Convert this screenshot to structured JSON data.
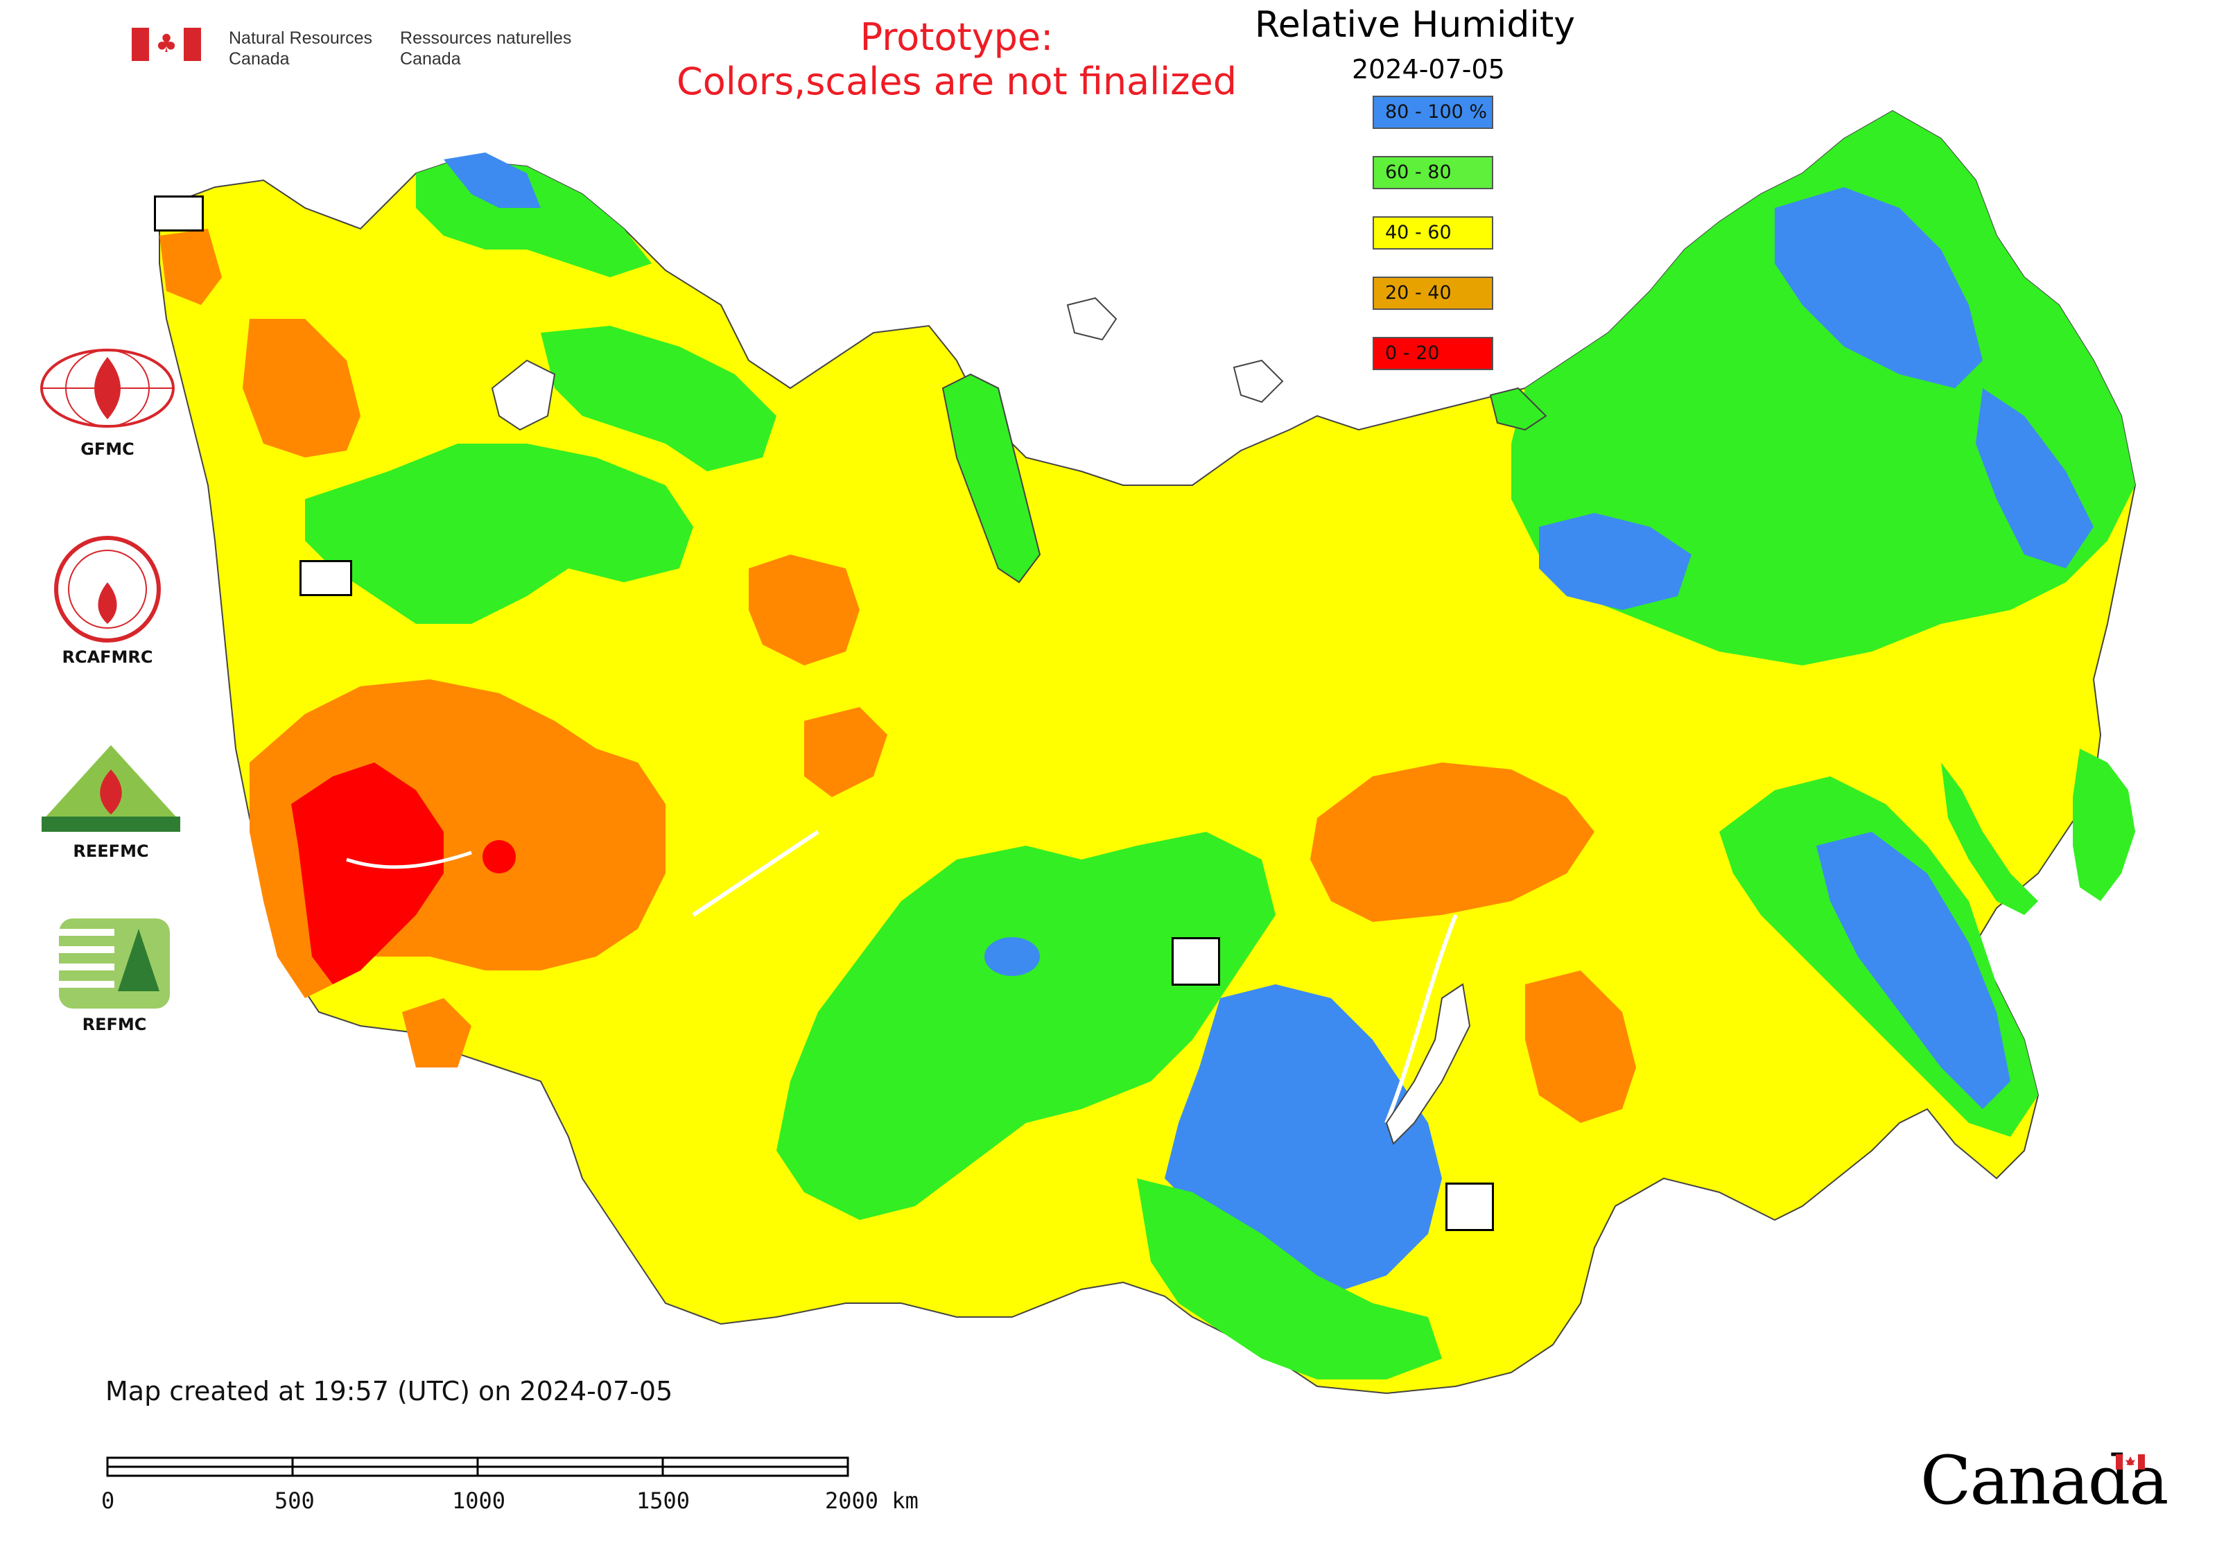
{
  "header": {
    "department_en_line1": "Natural Resources",
    "department_en_line2": "Canada",
    "department_fr_line1": "Ressources naturelles",
    "department_fr_line2": "Canada",
    "prototype_line1": "Prototype:",
    "prototype_line2": "Colors,scales are not finalized"
  },
  "legend": {
    "title": "Relative Humidity",
    "date": "2024-07-05",
    "items": [
      {
        "label": "80 - 100 %",
        "color": "#3d8bf0"
      },
      {
        "label": "60 - 80",
        "color": "#5ef03a"
      },
      {
        "label": "40 - 60",
        "color": "#ffff00"
      },
      {
        "label": "20 - 40",
        "color": "#e8a200"
      },
      {
        "label": "0 - 20",
        "color": "#ff0000"
      }
    ]
  },
  "colors": {
    "blue": "#3d8bf0",
    "green": "#33ee22",
    "yellow": "#ffff00",
    "orange": "#ff8800",
    "red": "#ff0000",
    "prototype_text": "#ee1c25"
  },
  "logos": [
    {
      "label": "GFMC",
      "icon": "gfmc-logo"
    },
    {
      "label": "RCAFMRC",
      "icon": "rcafmrc-logo"
    },
    {
      "label": "REEFMC",
      "icon": "reefmc-logo"
    },
    {
      "label": "REFMC",
      "icon": "refmc-logo"
    }
  ],
  "footer": {
    "created": "Map created at 19:57 (UTC) on 2024-07-05",
    "scale_labels": [
      "0",
      "500",
      "1000",
      "1500",
      "2000 km"
    ],
    "wordmark": "Canada"
  }
}
